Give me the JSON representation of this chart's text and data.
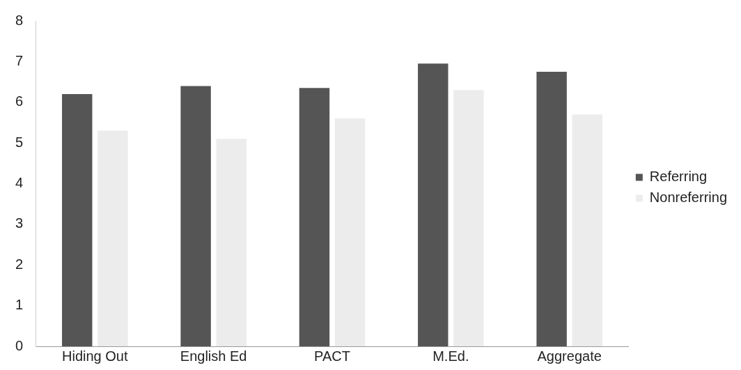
{
  "chart_data": {
    "type": "bar",
    "categories": [
      "Hiding Out",
      "English Ed",
      "PACT",
      "M.Ed.",
      "Aggregate"
    ],
    "series": [
      {
        "name": "Referring",
        "color": "#555555",
        "values": [
          6.2,
          6.4,
          6.35,
          6.95,
          6.75
        ]
      },
      {
        "name": "Nonreferring",
        "color": "#ececec",
        "values": [
          5.3,
          5.1,
          5.6,
          6.3,
          5.7
        ]
      }
    ],
    "ylim": [
      0,
      8
    ],
    "yticks": [
      0,
      1,
      2,
      3,
      4,
      5,
      6,
      7,
      8
    ],
    "grid": false,
    "legend": "right"
  }
}
